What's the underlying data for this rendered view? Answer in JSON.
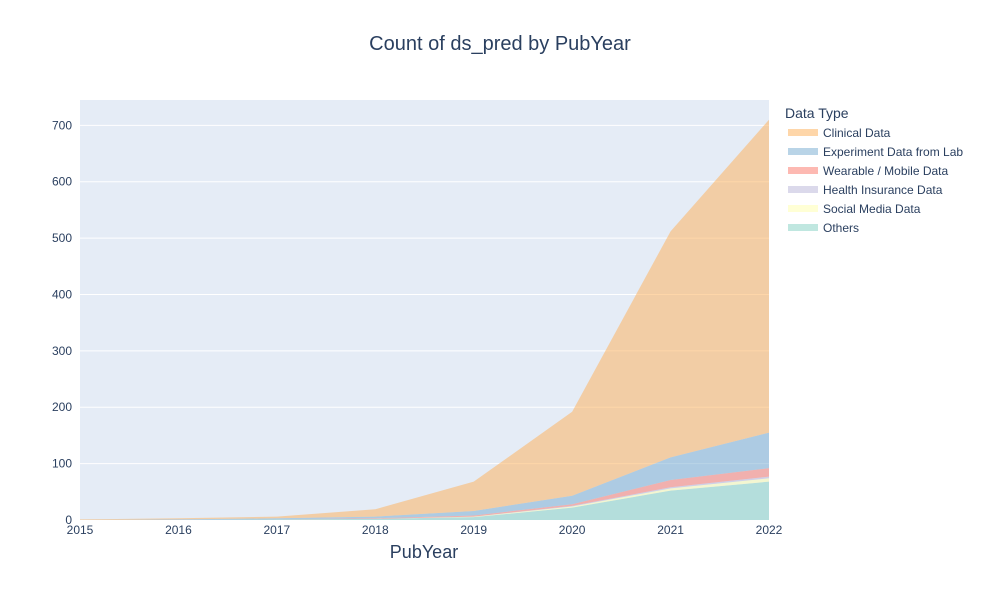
{
  "chart_data": {
    "type": "area",
    "title": "Count of ds_pred by PubYear",
    "xlabel": "PubYear",
    "ylabel": "",
    "x": [
      2015,
      2016,
      2017,
      2018,
      2019,
      2020,
      2021,
      2022
    ],
    "xlim": [
      2015,
      2022
    ],
    "ylim": [
      0,
      745
    ],
    "y_ticks": [
      0,
      100,
      200,
      300,
      400,
      500,
      600,
      700
    ],
    "grid": true,
    "stacked": true,
    "legend": {
      "title": "Data Type",
      "placement": "right"
    },
    "series": [
      {
        "name": "Others",
        "color": "#8dd3c7",
        "values": [
          0,
          0,
          1,
          2,
          5,
          22,
          52,
          68
        ]
      },
      {
        "name": "Social Media Data",
        "color": "#ffffb3",
        "values": [
          0,
          0,
          0,
          0,
          1,
          2,
          4,
          6
        ]
      },
      {
        "name": "Health Insurance Data",
        "color": "#bebada",
        "values": [
          0,
          0,
          0,
          0,
          0,
          1,
          2,
          3
        ]
      },
      {
        "name": "Wearable / Mobile Data",
        "color": "#fb8072",
        "values": [
          0,
          0,
          0,
          1,
          2,
          3,
          13,
          15
        ]
      },
      {
        "name": "Experiment Data from Lab",
        "color": "#80b1d3",
        "values": [
          0,
          1,
          2,
          3,
          8,
          15,
          40,
          63
        ]
      },
      {
        "name": "Clinical Data",
        "color": "#fdb462",
        "values": [
          1,
          2,
          3,
          13,
          52,
          149,
          401,
          555
        ]
      }
    ]
  }
}
